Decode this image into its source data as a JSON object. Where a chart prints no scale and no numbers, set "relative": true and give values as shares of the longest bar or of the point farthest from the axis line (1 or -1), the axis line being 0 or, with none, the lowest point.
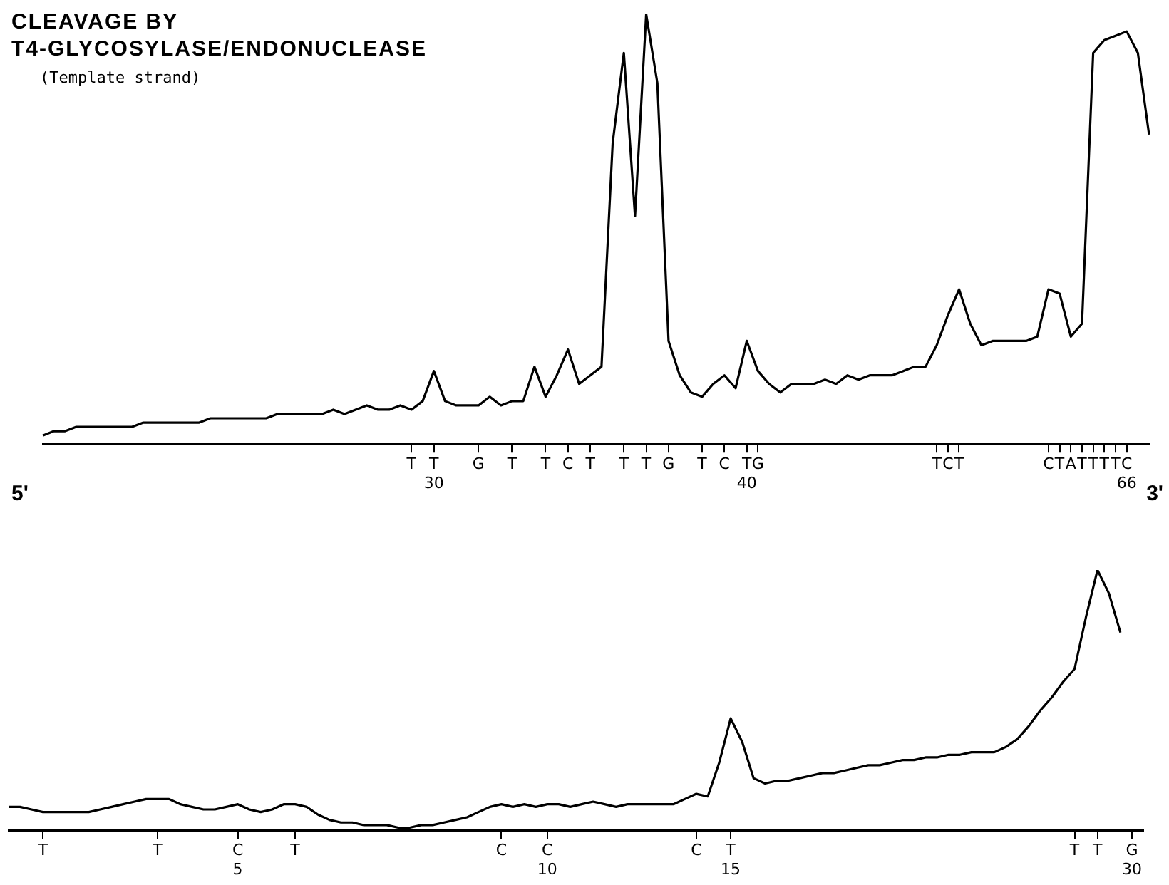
{
  "chart_data": [
    {
      "type": "line",
      "title": "CLEAVAGE BY\nT4-GLYCOSYLASE/ENDONUCLEASE",
      "subtitle": "(Template strand)",
      "relative": true,
      "color": "#000000",
      "categories": [
        null,
        null,
        null,
        null,
        null,
        null,
        null,
        null,
        null,
        null,
        null,
        null,
        null,
        null,
        null,
        null,
        null,
        null,
        null,
        null,
        null,
        null,
        null,
        null,
        null,
        null,
        null,
        null,
        null,
        null,
        null,
        null,
        null,
        "T",
        null,
        "T\n30",
        null,
        null,
        null,
        "G",
        null,
        null,
        "T",
        null,
        null,
        "T",
        null,
        "C",
        null,
        "T",
        null,
        null,
        "T",
        null,
        "T",
        null,
        "G",
        null,
        null,
        "T",
        null,
        "C",
        null,
        "T\n40",
        "G",
        null,
        null,
        null,
        null,
        null,
        null,
        null,
        null,
        null,
        null,
        null,
        null,
        null,
        null,
        null,
        "T",
        "C",
        "T",
        null,
        null,
        null,
        null,
        null,
        null,
        null,
        "C",
        "T",
        "A",
        "T",
        "T",
        "T",
        "T",
        "C\n66",
        null,
        null
      ],
      "values": [
        0.02,
        0.03,
        0.03,
        0.04,
        0.04,
        0.04,
        0.04,
        0.04,
        0.04,
        0.05,
        0.05,
        0.05,
        0.05,
        0.05,
        0.05,
        0.06,
        0.06,
        0.06,
        0.06,
        0.06,
        0.06,
        0.07,
        0.07,
        0.07,
        0.07,
        0.07,
        0.08,
        0.07,
        0.08,
        0.09,
        0.08,
        0.08,
        0.09,
        0.08,
        0.1,
        0.17,
        0.1,
        0.09,
        0.09,
        0.09,
        0.11,
        0.09,
        0.1,
        0.1,
        0.18,
        0.11,
        0.16,
        0.22,
        0.14,
        0.16,
        0.18,
        0.7,
        0.91,
        0.53,
        1,
        0.84,
        0.24,
        0.16,
        0.12,
        0.11,
        0.14,
        0.16,
        0.13,
        0.24,
        0.17,
        0.14,
        0.12,
        0.14,
        0.14,
        0.14,
        0.15,
        0.14,
        0.16,
        0.15,
        0.16,
        0.16,
        0.16,
        0.17,
        0.18,
        0.18,
        0.23,
        0.3,
        0.36,
        0.28,
        0.23,
        0.24,
        0.24,
        0.24,
        0.24,
        0.25,
        0.36,
        0.35,
        0.25,
        0.28,
        0.91,
        0.94,
        0.95,
        0.96,
        0.91,
        0.72
      ]
    },
    {
      "type": "line",
      "relative": true,
      "color": "#000000",
      "annotations": [
        "5'",
        "3'"
      ],
      "categories": [
        null,
        null,
        null,
        "T",
        null,
        null,
        null,
        null,
        null,
        null,
        null,
        null,
        null,
        "T",
        null,
        null,
        null,
        null,
        null,
        null,
        "C\n5",
        null,
        null,
        null,
        null,
        "T",
        null,
        null,
        null,
        null,
        null,
        null,
        null,
        null,
        null,
        null,
        null,
        null,
        null,
        null,
        null,
        null,
        null,
        "C",
        null,
        null,
        null,
        "C\n10",
        null,
        null,
        null,
        null,
        null,
        null,
        null,
        null,
        null,
        null,
        null,
        null,
        "C",
        null,
        null,
        "T\n15",
        null,
        null,
        null,
        null,
        null,
        null,
        null,
        null,
        null,
        null,
        null,
        null,
        null,
        null,
        null,
        null,
        null,
        null,
        null,
        null,
        null,
        null,
        null,
        null,
        null,
        null,
        null,
        null,
        null,
        "T",
        null,
        "T",
        null,
        null,
        "G\n30",
        null
      ],
      "values": [
        0.09,
        0.09,
        0.08,
        0.07,
        0.07,
        0.07,
        0.07,
        0.07,
        0.08,
        0.09,
        0.1,
        0.11,
        0.12,
        0.12,
        0.12,
        0.1,
        0.09,
        0.08,
        0.08,
        0.09,
        0.1,
        0.08,
        0.07,
        0.08,
        0.1,
        0.1,
        0.09,
        0.06,
        0.04,
        0.03,
        0.03,
        0.02,
        0.02,
        0.02,
        0.01,
        0.01,
        0.02,
        0.02,
        0.03,
        0.04,
        0.05,
        0.07,
        0.09,
        0.1,
        0.09,
        0.1,
        0.09,
        0.1,
        0.1,
        0.09,
        0.1,
        0.11,
        0.1,
        0.09,
        0.1,
        0.1,
        0.1,
        0.1,
        0.1,
        0.12,
        0.14,
        0.13,
        0.26,
        0.43,
        0.34,
        0.2,
        0.18,
        0.19,
        0.19,
        0.2,
        0.21,
        0.22,
        0.22,
        0.23,
        0.24,
        0.25,
        0.25,
        0.26,
        0.27,
        0.27,
        0.28,
        0.28,
        0.29,
        0.29,
        0.3,
        0.3,
        0.3,
        0.32,
        0.35,
        0.4,
        0.46,
        0.51,
        0.57,
        0.62,
        0.82,
        1,
        0.91,
        0.76,
        null,
        null
      ]
    }
  ]
}
